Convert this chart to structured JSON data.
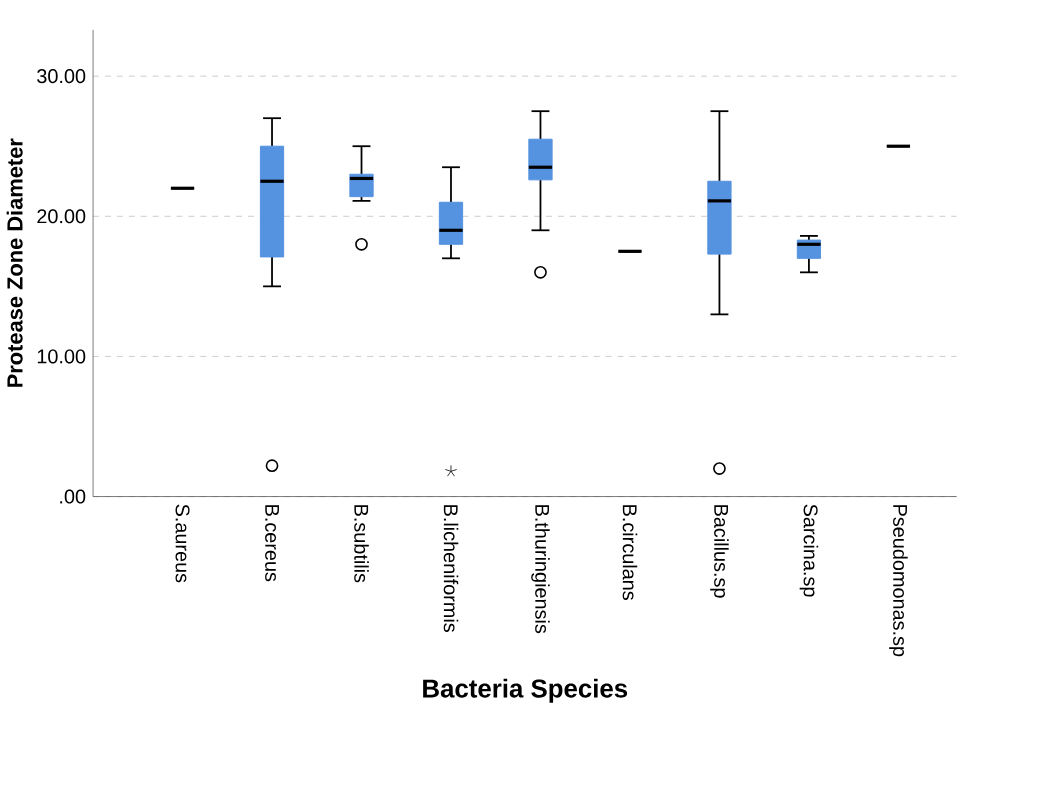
{
  "chart_data": {
    "type": "box",
    "xlabel": "Bacteria Species",
    "ylabel": "Protease Zone Diameter",
    "categories": [
      "S.aureus",
      "B.cereus",
      "B.subtilis",
      "B.licheniformis",
      "B.thuringiensis",
      "B.circulans",
      "Bacillus.sp",
      "Sarcina.sp",
      "Pseudomonas.sp"
    ],
    "color": "#5592e0",
    "boxes": [
      {
        "low": 22.0,
        "q1": 22.0,
        "median": 22.0,
        "q3": 22.0,
        "high": 22.0
      },
      {
        "low": 15.0,
        "q1": 17.1,
        "median": 22.5,
        "q3": 25.0,
        "high": 27.0,
        "outliers": [
          2.2
        ]
      },
      {
        "low": 21.1,
        "q1": 21.4,
        "median": 22.7,
        "q3": 23.0,
        "high": 25.0,
        "outliers": [
          18.0
        ]
      },
      {
        "low": 17.0,
        "q1": 18.0,
        "median": 19.0,
        "q3": 21.0,
        "high": 23.5,
        "outliers": [
          1.8
        ]
      },
      {
        "low": 19.0,
        "q1": 22.6,
        "median": 23.5,
        "q3": 25.5,
        "high": 27.5,
        "outliers": [
          16.0
        ]
      },
      {
        "low": 17.5,
        "q1": 17.5,
        "median": 17.5,
        "q3": 17.5,
        "high": 17.5
      },
      {
        "low": 13.0,
        "q1": 17.3,
        "median": 21.1,
        "q3": 22.5,
        "high": 27.5,
        "outliers": [
          2.0
        ]
      },
      {
        "low": 16.0,
        "q1": 17.0,
        "median": 18.0,
        "q3": 18.3,
        "high": 18.6
      },
      {
        "low": 25.0,
        "q1": 25.0,
        "median": 25.0,
        "q3": 25.0,
        "high": 25.0
      }
    ],
    "ylim": [
      0,
      33.3
    ],
    "yticks": [
      {
        "value": 0,
        "label": ".00"
      },
      {
        "value": 10,
        "label": "10.00"
      },
      {
        "value": 20,
        "label": "20.00"
      },
      {
        "value": 30,
        "label": "30.00"
      }
    ],
    "grid": "y"
  }
}
